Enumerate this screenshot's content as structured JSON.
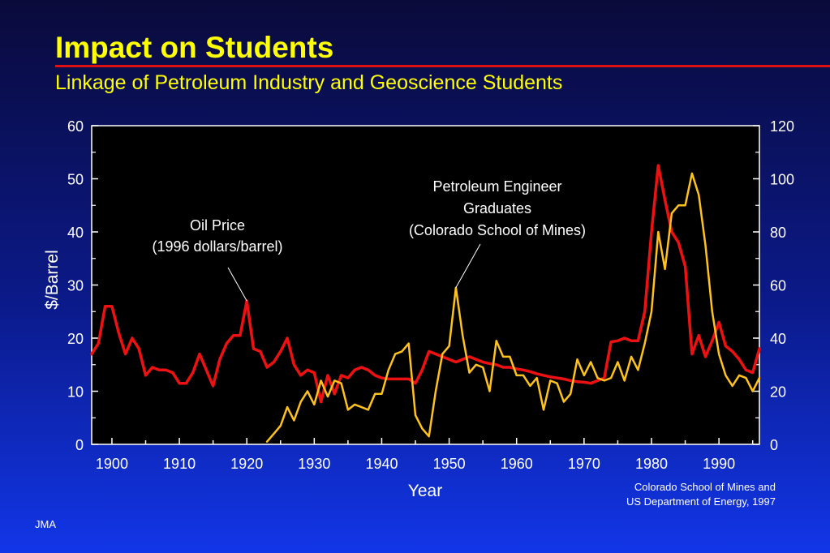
{
  "slide": {
    "title": "Impact on Students",
    "subtitle": "Linkage of Petroleum Industry and Geoscience Students",
    "source_line1": "Colorado School of Mines and",
    "source_line2": "US Department of Energy, 1997",
    "author": "JMA"
  },
  "colors": {
    "title": "#ffff00",
    "rule": "#e01010",
    "oil_series": "#ee1111",
    "grad_series": "#ffc21c",
    "plot_bg": "#000000"
  },
  "chart_data": {
    "type": "line",
    "xlabel": "Year",
    "ylabel": "$/Barrel",
    "xlim": [
      1897,
      1996
    ],
    "ylim": [
      0,
      60
    ],
    "y2lim": [
      0,
      120
    ],
    "xticks": [
      "1900",
      "1910",
      "1920",
      "1930",
      "1940",
      "1950",
      "1960",
      "1970",
      "1980",
      "1990"
    ],
    "yticks": [
      "0",
      "10",
      "20",
      "30",
      "40",
      "50",
      "60"
    ],
    "y2ticks": [
      "0",
      "20",
      "40",
      "60",
      "80",
      "100",
      "120"
    ],
    "grid": false,
    "annotations": [
      {
        "id": "oil",
        "lines": [
          "Oil Price",
          "(1996 dollars/barrel)"
        ],
        "point_x": 1920,
        "point_y": 27
      },
      {
        "id": "grad",
        "lines": [
          "Petroleum Engineer",
          "Graduates",
          "(Colorado School of Mines)"
        ],
        "point_x": 1951,
        "point_y": 29.5
      }
    ],
    "series": [
      {
        "name": "Oil Price",
        "axis": "left",
        "x": [
          1897,
          1898,
          1899,
          1900,
          1901,
          1902,
          1903,
          1904,
          1905,
          1906,
          1907,
          1908,
          1909,
          1910,
          1911,
          1912,
          1913,
          1914,
          1915,
          1916,
          1917,
          1918,
          1919,
          1920,
          1921,
          1922,
          1923,
          1924,
          1925,
          1926,
          1927,
          1928,
          1929,
          1930,
          1931,
          1932,
          1933,
          1934,
          1935,
          1936,
          1937,
          1938,
          1939,
          1940,
          1941,
          1942,
          1943,
          1944,
          1945,
          1946,
          1947,
          1948,
          1949,
          1950,
          1951,
          1952,
          1953,
          1954,
          1955,
          1956,
          1957,
          1958,
          1959,
          1960,
          1961,
          1962,
          1963,
          1964,
          1965,
          1966,
          1967,
          1968,
          1969,
          1970,
          1971,
          1972,
          1973,
          1974,
          1975,
          1976,
          1977,
          1978,
          1979,
          1980,
          1981,
          1982,
          1983,
          1984,
          1985,
          1986,
          1987,
          1988,
          1989,
          1990,
          1991,
          1992,
          1993,
          1994,
          1995,
          1996
        ],
        "values": [
          17,
          19,
          26,
          26,
          21,
          17,
          20,
          18,
          13,
          14.5,
          14,
          14,
          13.5,
          11.5,
          11.5,
          13.5,
          17,
          14,
          11,
          16,
          19,
          20.5,
          20.5,
          27,
          18,
          17.5,
          14.5,
          15.5,
          17.5,
          20,
          15,
          13,
          14,
          13.5,
          8,
          13,
          9.5,
          13,
          12.5,
          14,
          14.5,
          14,
          13,
          12.5,
          12.3,
          12.3,
          12.3,
          12.3,
          11.5,
          14,
          17.5,
          17,
          16.5,
          16,
          15.5,
          16,
          16.5,
          16,
          15.5,
          15.2,
          15,
          14.5,
          14.5,
          14.2,
          14,
          13.7,
          13.3,
          13,
          12.7,
          12.5,
          12.3,
          12,
          11.8,
          11.7,
          11.5,
          12,
          12.5,
          19.3,
          19.5,
          20,
          19.5,
          19.5,
          25,
          40,
          52.5,
          46,
          40,
          38,
          33.5,
          17,
          20.5,
          16.5,
          19.5,
          23,
          18.5,
          17.5,
          16,
          14,
          13.5,
          18
        ]
      },
      {
        "name": "Petroleum Engineer Graduates",
        "axis": "right",
        "x": [
          1923,
          1924,
          1925,
          1926,
          1927,
          1928,
          1929,
          1930,
          1931,
          1932,
          1933,
          1934,
          1935,
          1936,
          1937,
          1938,
          1939,
          1940,
          1941,
          1942,
          1943,
          1944,
          1945,
          1946,
          1947,
          1948,
          1949,
          1950,
          1951,
          1952,
          1953,
          1954,
          1955,
          1956,
          1957,
          1958,
          1959,
          1960,
          1961,
          1962,
          1963,
          1964,
          1965,
          1966,
          1967,
          1968,
          1969,
          1970,
          1971,
          1972,
          1973,
          1974,
          1975,
          1976,
          1977,
          1978,
          1979,
          1980,
          1981,
          1982,
          1983,
          1984,
          1985,
          1986,
          1987,
          1988,
          1989,
          1990,
          1991,
          1992,
          1993,
          1994,
          1995,
          1996
        ],
        "values": [
          1,
          4,
          7,
          14,
          9,
          16,
          20,
          15,
          24,
          18,
          24,
          23,
          13,
          15,
          14,
          13,
          19,
          19,
          28,
          34,
          35,
          38,
          11,
          6,
          3,
          20,
          34,
          37,
          59,
          41,
          27,
          30,
          29,
          20,
          39,
          33,
          33,
          26,
          26,
          22,
          25,
          13,
          24,
          23,
          16,
          19,
          32,
          26,
          31,
          25,
          24,
          25,
          31,
          24,
          33,
          28,
          38,
          50,
          80,
          66,
          87,
          90,
          90,
          102,
          94,
          75,
          50,
          34,
          26,
          22,
          26,
          25,
          20,
          25
        ]
      }
    ]
  }
}
